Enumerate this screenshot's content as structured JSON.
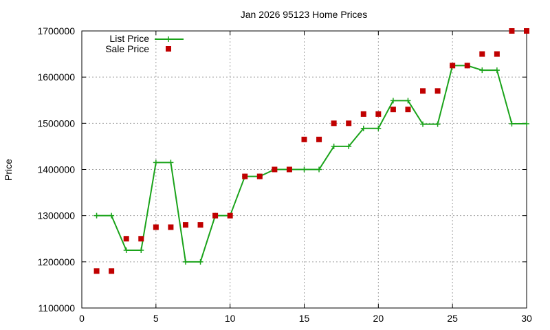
{
  "chart_data": {
    "type": "line",
    "title": "Jan 2026 95123 Home Prices",
    "xlabel": "",
    "ylabel": "Price",
    "xlim": [
      0,
      30
    ],
    "ylim": [
      1100000,
      1700000
    ],
    "x_ticks": [
      0,
      5,
      10,
      15,
      20,
      25,
      30
    ],
    "y_ticks": [
      1100000,
      1200000,
      1300000,
      1400000,
      1500000,
      1600000,
      1700000
    ],
    "x_tick_labels": [
      "0",
      "5",
      "10",
      "15",
      "20",
      "25",
      "30"
    ],
    "y_tick_labels": [
      "1100000",
      "1200000",
      "1300000",
      "1400000",
      "1500000",
      "1600000",
      "1700000"
    ],
    "grid": true,
    "legend_position": "top-left",
    "series": [
      {
        "name": "List Price",
        "style": "linespoints",
        "color": "#1aa31a",
        "x": [
          1,
          2,
          3,
          4,
          5,
          6,
          7,
          8,
          9,
          10,
          11,
          12,
          13,
          14,
          15,
          16,
          17,
          18,
          19,
          20,
          21,
          22,
          23,
          24,
          25,
          26,
          27,
          28,
          29,
          30
        ],
        "values": [
          1300000,
          1300000,
          1225000,
          1225000,
          1415000,
          1415000,
          1200000,
          1200000,
          1300000,
          1300000,
          1385000,
          1385000,
          1400000,
          1400000,
          1400000,
          1400000,
          1450000,
          1450000,
          1489000,
          1489000,
          1549000,
          1549000,
          1498000,
          1498000,
          1625000,
          1625000,
          1615000,
          1615000,
          1499000,
          1499000
        ]
      },
      {
        "name": "Sale Price",
        "style": "points",
        "color": "#c00000",
        "x": [
          1,
          2,
          3,
          4,
          5,
          6,
          7,
          8,
          9,
          10,
          11,
          12,
          13,
          14,
          15,
          16,
          17,
          18,
          19,
          20,
          21,
          22,
          23,
          24,
          25,
          26,
          27,
          28,
          29,
          30
        ],
        "values": [
          1180000,
          1180000,
          1250000,
          1250000,
          1275000,
          1275000,
          1280000,
          1280000,
          1300000,
          1300000,
          1385000,
          1385000,
          1400000,
          1400000,
          1465000,
          1465000,
          1500000,
          1500000,
          1520000,
          1520000,
          1530000,
          1530000,
          1570000,
          1570000,
          1625000,
          1625000,
          1650000,
          1650000,
          1700000,
          1700000
        ]
      }
    ]
  }
}
